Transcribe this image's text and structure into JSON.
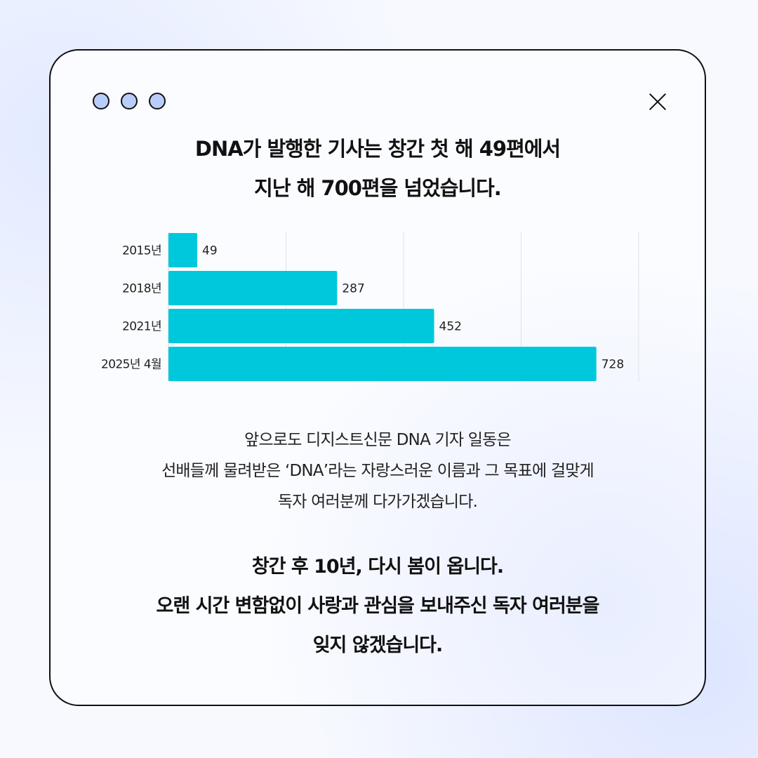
{
  "headline": {
    "line1": "DNA가 발행한 기사는 창간 첫 해 49편에서",
    "line2": "지난 해 700편을 넘었습니다."
  },
  "chart_data": {
    "type": "bar",
    "orientation": "horizontal",
    "categories": [
      "2015년",
      "2018년",
      "2021년",
      "2025년 4월"
    ],
    "values": [
      49,
      287,
      452,
      728
    ],
    "xlim": [
      0,
      800
    ],
    "grid": true,
    "bar_color": "#00c8dc"
  },
  "body": {
    "line1": "앞으로도 디지스트신문 DNA 기자 일동은",
    "line2": "선배들께 물려받은 ‘DNA’라는 자랑스러운 이름과 그 목표에 걸맞게",
    "line3": "독자 여러분께 다가가겠습니다."
  },
  "closing": {
    "line1": "창간 후 10년, 다시 봄이 옵니다.",
    "line2": "오랜 시간 변함없이 사랑과 관심을 보내주신 독자 여러분을",
    "line3": "잊지 않겠습니다."
  },
  "window_controls": {
    "dots_color": "#b9cdfb",
    "close_icon": "close-icon"
  }
}
